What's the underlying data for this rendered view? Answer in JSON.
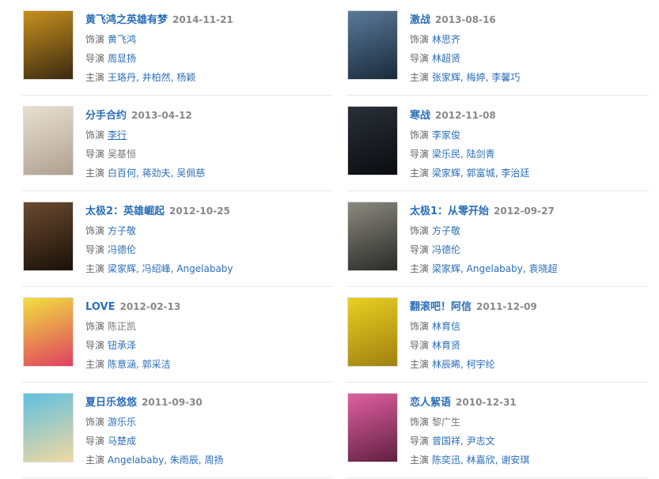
{
  "labels": {
    "role": "饰演",
    "director": "导演",
    "cast": "主演"
  },
  "movies": [
    {
      "title": "黄飞鸿之英雄有梦",
      "date": "2014-11-21",
      "role": [
        {
          "n": "黄飞鸿",
          "link": true
        }
      ],
      "director": [
        {
          "n": "周显扬",
          "link": true
        }
      ],
      "cast": [
        {
          "n": "王珞丹",
          "link": true
        },
        {
          "n": "井柏然",
          "link": true
        },
        {
          "n": "杨颖",
          "link": true
        }
      ],
      "colors": [
        "#c8901e",
        "#3a2a10"
      ]
    },
    {
      "title": "激战",
      "date": "2013-08-16",
      "role": [
        {
          "n": "林思齐",
          "link": true
        }
      ],
      "director": [
        {
          "n": "林超贤",
          "link": true
        }
      ],
      "cast": [
        {
          "n": "张家辉",
          "link": true
        },
        {
          "n": "梅婷",
          "link": true
        },
        {
          "n": "李馨巧",
          "link": true
        }
      ],
      "colors": [
        "#5a7a9a",
        "#1a2a3a"
      ]
    },
    {
      "title": "分手合约",
      "date": "2013-04-12",
      "role": [
        {
          "n": "李行",
          "link": true,
          "hover": true
        }
      ],
      "director": [
        {
          "n": "吴基恒",
          "link": false
        }
      ],
      "cast": [
        {
          "n": "白百何",
          "link": true
        },
        {
          "n": "蒋劲夫",
          "link": true
        },
        {
          "n": "吴佩慈",
          "link": true
        }
      ],
      "colors": [
        "#e8e0d0",
        "#b0a090"
      ]
    },
    {
      "title": "寒战",
      "date": "2012-11-08",
      "role": [
        {
          "n": "李家俊",
          "link": true
        }
      ],
      "director": [
        {
          "n": "梁乐民",
          "link": true
        },
        {
          "n": "陆剑青",
          "link": true
        }
      ],
      "cast": [
        {
          "n": "梁家辉",
          "link": true
        },
        {
          "n": "郭富城",
          "link": true
        },
        {
          "n": "李治廷",
          "link": true
        }
      ],
      "colors": [
        "#2a3038",
        "#0a0c10"
      ]
    },
    {
      "title": "太极2：英雄崛起",
      "date": "2012-10-25",
      "role": [
        {
          "n": "方子敬",
          "link": true
        }
      ],
      "director": [
        {
          "n": "冯德伦",
          "link": true
        }
      ],
      "cast": [
        {
          "n": "梁家辉",
          "link": true
        },
        {
          "n": "冯绍峰",
          "link": true
        },
        {
          "n": "Angelababy",
          "link": true
        }
      ],
      "colors": [
        "#6a4a30",
        "#1a1008"
      ]
    },
    {
      "title": "太极1：从零开始",
      "date": "2012-09-27",
      "role": [
        {
          "n": "方子敬",
          "link": true
        }
      ],
      "director": [
        {
          "n": "冯德伦",
          "link": true
        }
      ],
      "cast": [
        {
          "n": "梁家辉",
          "link": true
        },
        {
          "n": "Angelababy",
          "link": true
        },
        {
          "n": "袁晓超",
          "link": true
        }
      ],
      "colors": [
        "#8a8a80",
        "#2a2a28"
      ]
    },
    {
      "title": "LOVE",
      "date": "2012-02-13",
      "role": [
        {
          "n": "陈正凯",
          "link": false
        }
      ],
      "director": [
        {
          "n": "钮承泽",
          "link": true
        }
      ],
      "cast": [
        {
          "n": "陈意涵",
          "link": true
        },
        {
          "n": "郭采洁",
          "link": true
        }
      ],
      "colors": [
        "#f0e040",
        "#e04060"
      ]
    },
    {
      "title": "翻滚吧！阿信",
      "date": "2011-12-09",
      "role": [
        {
          "n": "林育信",
          "link": true
        }
      ],
      "director": [
        {
          "n": "林育贤",
          "link": true
        }
      ],
      "cast": [
        {
          "n": "林辰晞",
          "link": true
        },
        {
          "n": "柯宇纶",
          "link": true
        }
      ],
      "colors": [
        "#e8d020",
        "#a08010"
      ]
    },
    {
      "title": "夏日乐悠悠",
      "date": "2011-09-30",
      "role": [
        {
          "n": "游乐乐",
          "link": true
        }
      ],
      "director": [
        {
          "n": "马楚成",
          "link": true
        }
      ],
      "cast": [
        {
          "n": "Angelababy",
          "link": true
        },
        {
          "n": "朱雨辰",
          "link": true
        },
        {
          "n": "周扬",
          "link": true
        }
      ],
      "colors": [
        "#60c0e0",
        "#f0d8a0"
      ]
    },
    {
      "title": "恋人絮语",
      "date": "2010-12-31",
      "role": [
        {
          "n": "黎广生",
          "link": false
        }
      ],
      "director": [
        {
          "n": "曾国祥",
          "link": true
        },
        {
          "n": "尹志文",
          "link": true
        }
      ],
      "cast": [
        {
          "n": "陈奕迅",
          "link": true
        },
        {
          "n": "林嘉欣",
          "link": true
        },
        {
          "n": "谢安琪",
          "link": true
        }
      ],
      "colors": [
        "#e060a0",
        "#602040"
      ]
    }
  ]
}
